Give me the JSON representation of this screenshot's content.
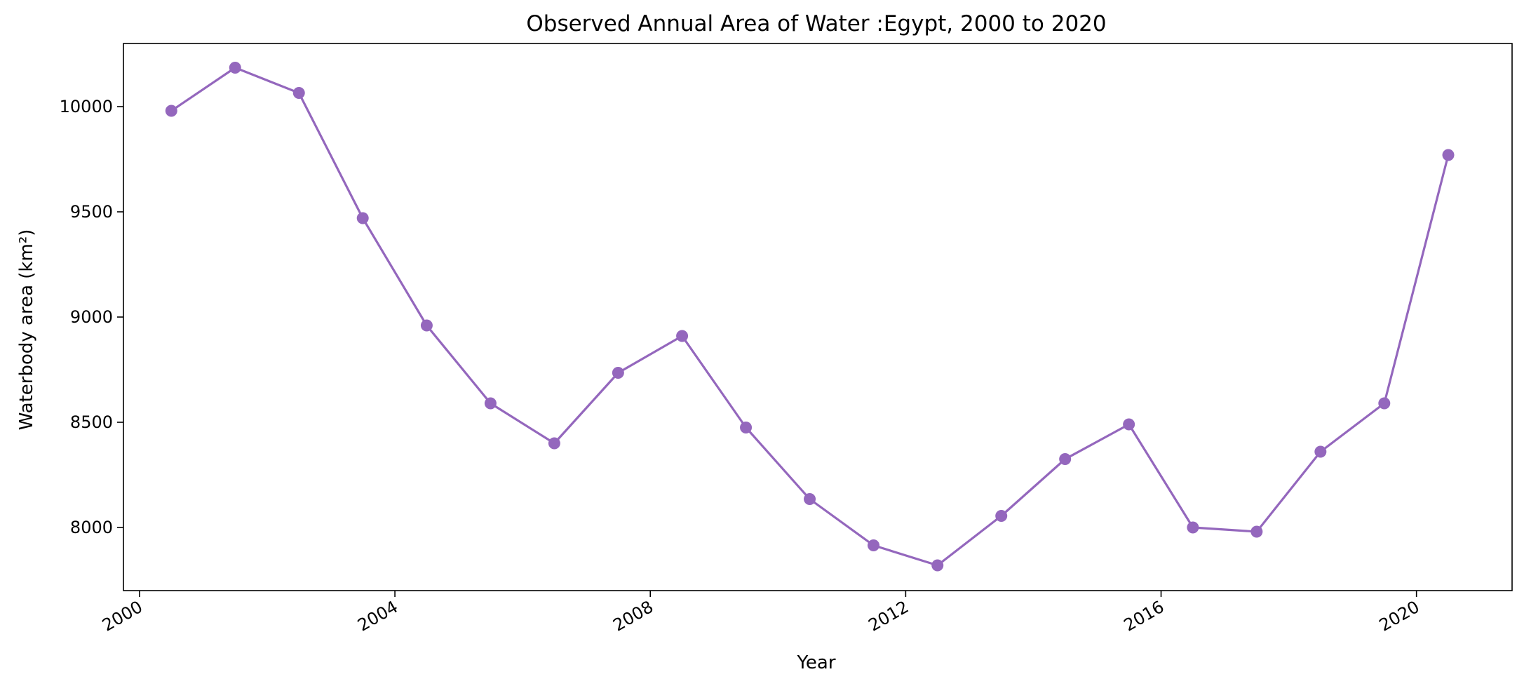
{
  "chart_data": {
    "type": "line",
    "title": "Observed Annual Area of Water :Egypt, 2000 to 2020",
    "xlabel": "Year",
    "ylabel": "Waterbody area (km²)",
    "xlim": [
      "1999-10-01",
      "2021-07-01"
    ],
    "ylim": [
      7700,
      10300
    ],
    "x_ticks": [
      "2000",
      "2004",
      "2008",
      "2012",
      "2016",
      "2020"
    ],
    "y_ticks": [
      8000,
      8500,
      9000,
      9500,
      10000
    ],
    "grid": false,
    "legend": "none",
    "color": "#9467bd",
    "x": [
      "2000-07-01",
      "2001-07-01",
      "2002-07-01",
      "2003-07-01",
      "2004-07-01",
      "2005-07-01",
      "2006-07-01",
      "2007-07-01",
      "2008-07-01",
      "2009-07-01",
      "2010-07-01",
      "2011-07-01",
      "2012-07-01",
      "2013-07-01",
      "2014-07-01",
      "2015-07-01",
      "2016-07-01",
      "2017-07-01",
      "2018-07-01",
      "2019-07-01",
      "2020-07-01"
    ],
    "series": [
      {
        "values": [
          9980,
          10185,
          10065,
          9470,
          8960,
          8590,
          8400,
          8735,
          8910,
          8475,
          8135,
          7915,
          7820,
          8055,
          8325,
          8490,
          8000,
          7980,
          8360,
          8590,
          9770
        ]
      }
    ]
  }
}
